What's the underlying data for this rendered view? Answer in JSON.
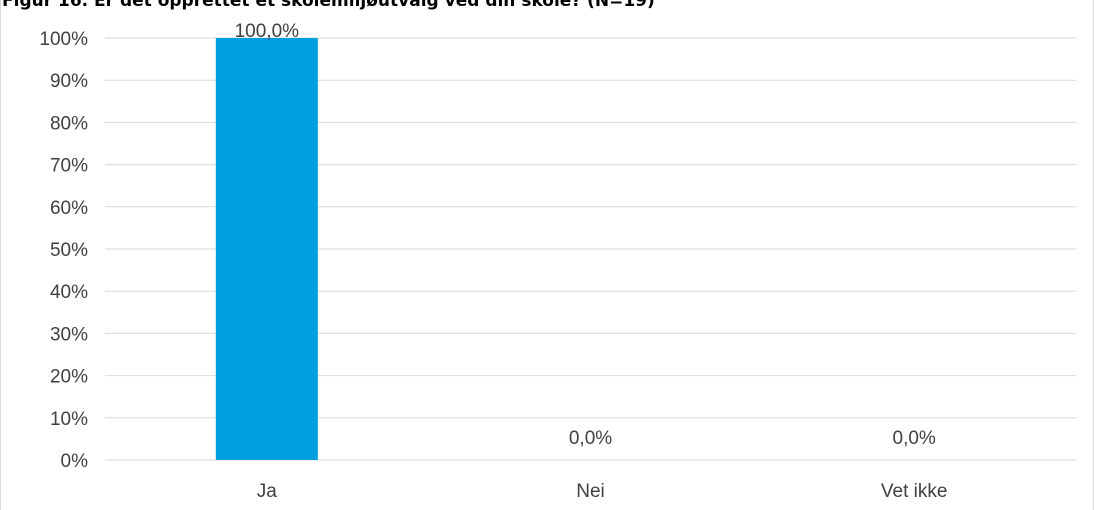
{
  "chart_data": {
    "type": "bar",
    "title": "Figur 16. Er det opprettet et skolemiljøutvalg ved din skole? (N=19)",
    "categories": [
      "Ja",
      "Nei",
      "Vet ikke"
    ],
    "values": [
      100.0,
      0.0,
      0.0
    ],
    "data_labels": [
      "100,0%",
      "0,0%",
      "0,0%"
    ],
    "y_ticks": [
      "0%",
      "10%",
      "20%",
      "30%",
      "40%",
      "50%",
      "60%",
      "70%",
      "80%",
      "90%",
      "100%"
    ],
    "ylim": [
      0,
      100
    ],
    "xlabel": "",
    "ylabel": "",
    "grid": true,
    "legend": "none",
    "colors": {
      "bar": "#009fdf",
      "grid": "#d9d9d9",
      "axis": "#d9d9d9",
      "text": "#404040"
    }
  }
}
